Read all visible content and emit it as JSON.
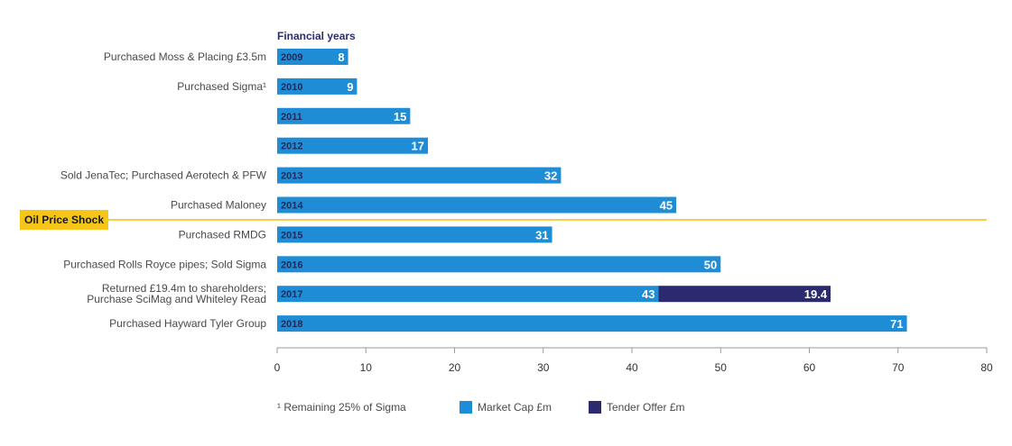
{
  "chart_data": {
    "type": "bar",
    "orientation": "horizontal",
    "stacked": true,
    "header": "Financial years",
    "categories": [
      "2009",
      "2010",
      "2011",
      "2012",
      "2013",
      "2014",
      "2015",
      "2016",
      "2017",
      "2018"
    ],
    "events": [
      [
        "Purchased Moss & Placing £3.5m"
      ],
      [
        "Purchased Sigma¹"
      ],
      [
        ""
      ],
      [
        ""
      ],
      [
        "Sold JenaTec; Purchased Aerotech & PFW"
      ],
      [
        "Purchased Maloney"
      ],
      [
        "Purchased RMDG"
      ],
      [
        "Purchased Rolls Royce pipes; Sold Sigma"
      ],
      [
        "Returned £19.4m to shareholders;",
        "Purchase SciMag and Whiteley Read"
      ],
      [
        "Purchased Hayward Tyler Group"
      ]
    ],
    "series": [
      {
        "name": "Market Cap £m",
        "color": "#1f8dd6",
        "values": [
          8,
          9,
          15,
          17,
          32,
          45,
          31,
          50,
          43,
          71
        ],
        "labels": [
          "8",
          "9",
          "15",
          "17",
          "32",
          "45",
          "31",
          "50",
          "43",
          "71"
        ]
      },
      {
        "name": "Tender Offer £m",
        "color": "#2b2a6e",
        "values": [
          0,
          0,
          0,
          0,
          0,
          0,
          0,
          0,
          19.4,
          0
        ],
        "labels": [
          "",
          "",
          "",
          "",
          "",
          "",
          "",
          "",
          "19.4",
          ""
        ]
      }
    ],
    "xlim": [
      0,
      80
    ],
    "xticks": [
      "0",
      "10",
      "20",
      "30",
      "40",
      "50",
      "60",
      "70",
      "80"
    ],
    "annotation": {
      "label": "Oil Price Shock",
      "between": [
        "2014",
        "2015"
      ],
      "color": "#f5c518"
    },
    "footnote": "¹ Remaining 25% of Sigma",
    "legend_position": "bottom"
  }
}
